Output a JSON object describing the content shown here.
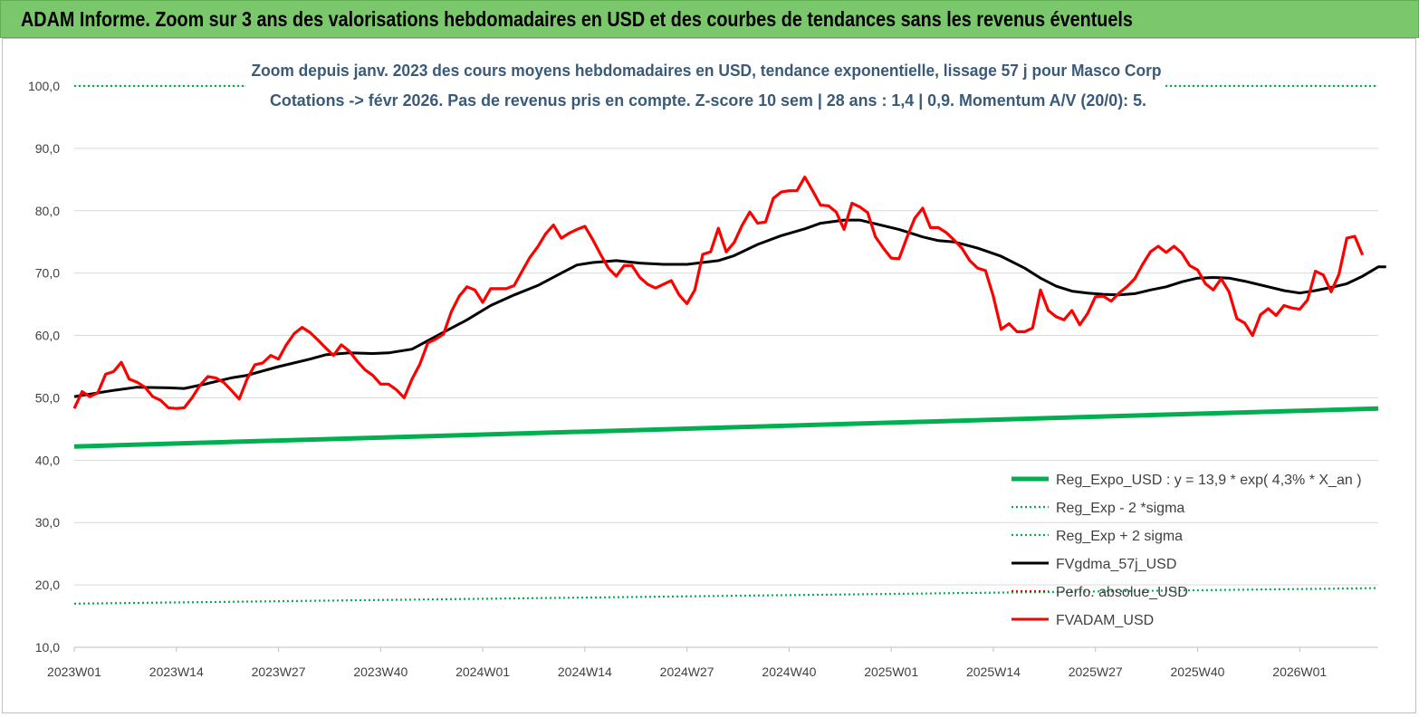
{
  "banner": {
    "title": "ADAM Informe. Zoom sur 3 ans des valorisations hebdomadaires en USD et des courbes de tendances sans les revenus éventuels"
  },
  "chart_data": {
    "type": "line",
    "title": "Zoom depuis janv. 2023 des cours moyens hebdomadaires en USD, tendance exponentielle, lissage 57 j pour Masco Corp",
    "subtitle": "Cotations -> févr 2026. Pas de revenus pris en compte. Z-score 10 sem | 28 ans : 1,4 | 0,9. Momentum A/V (20/0): 5.",
    "xlabel": "",
    "ylabel": "",
    "ylim": [
      10,
      100
    ],
    "yticks": [
      "10,0",
      "20,0",
      "30,0",
      "40,0",
      "50,0",
      "60,0",
      "70,0",
      "80,0",
      "90,0",
      "100,0"
    ],
    "xticks": [
      "2023W01",
      "2023W14",
      "2023W27",
      "2023W40",
      "2024W01",
      "2024W14",
      "2024W27",
      "2024W40",
      "2025W01",
      "2025W14",
      "2025W27",
      "2025W40",
      "2026W01"
    ],
    "n_weeks": 167,
    "grid": true,
    "legend_position": "right",
    "series": [
      {
        "name": "Reg_Expo_USD : y = 13,9 * exp( 4,3% *  X_an )",
        "color": "#00b050",
        "style": "solid",
        "points": [
          [
            0,
            42.2
          ],
          [
            166,
            48.3
          ]
        ]
      },
      {
        "name": "Reg_Exp - 2 *sigma",
        "color": "#00b050",
        "style": "dotted",
        "points": [
          [
            0,
            17.0
          ],
          [
            166,
            19.5
          ]
        ]
      },
      {
        "name": "Reg_Exp + 2 sigma",
        "color": "#00b050",
        "style": "dotted",
        "points": [
          [
            0,
            100.0
          ],
          [
            166,
            100.0
          ]
        ]
      },
      {
        "name": "FVgdma_57j_USD",
        "color": "#000000",
        "style": "solid",
        "points": [
          [
            0,
            50.2
          ],
          [
            5,
            51.2
          ],
          [
            8,
            51.7
          ],
          [
            12,
            51.6
          ],
          [
            14,
            51.5
          ],
          [
            17,
            52.3
          ],
          [
            20,
            53.2
          ],
          [
            22,
            53.6
          ],
          [
            26,
            55.0
          ],
          [
            30,
            56.2
          ],
          [
            32,
            56.9
          ],
          [
            35,
            57.2
          ],
          [
            38,
            57.1
          ],
          [
            40,
            57.2
          ],
          [
            43,
            57.8
          ],
          [
            47,
            60.5
          ],
          [
            50,
            62.5
          ],
          [
            53,
            64.8
          ],
          [
            56,
            66.5
          ],
          [
            59,
            68.0
          ],
          [
            62,
            70.0
          ],
          [
            64,
            71.3
          ],
          [
            66,
            71.7
          ],
          [
            69,
            72.0
          ],
          [
            72,
            71.6
          ],
          [
            75,
            71.4
          ],
          [
            78,
            71.4
          ],
          [
            82,
            72.0
          ],
          [
            84,
            72.8
          ],
          [
            87,
            74.6
          ],
          [
            90,
            76.0
          ],
          [
            93,
            77.1
          ],
          [
            95,
            78.0
          ],
          [
            98,
            78.5
          ],
          [
            100,
            78.5
          ],
          [
            103,
            77.6
          ],
          [
            105,
            77.0
          ],
          [
            108,
            75.8
          ],
          [
            110,
            75.2
          ],
          [
            112,
            75.0
          ],
          [
            115,
            74.0
          ],
          [
            118,
            72.7
          ],
          [
            121,
            70.8
          ],
          [
            123,
            69.2
          ],
          [
            125,
            67.9
          ],
          [
            127,
            67.1
          ],
          [
            129,
            66.8
          ],
          [
            131,
            66.6
          ],
          [
            133,
            66.5
          ],
          [
            135,
            66.7
          ],
          [
            137,
            67.3
          ],
          [
            139,
            67.8
          ],
          [
            141,
            68.6
          ],
          [
            143,
            69.2
          ],
          [
            145,
            69.3
          ],
          [
            147,
            69.2
          ],
          [
            149,
            68.7
          ],
          [
            152,
            67.8
          ],
          [
            154,
            67.2
          ],
          [
            156,
            66.8
          ],
          [
            158,
            67.2
          ],
          [
            160,
            67.7
          ],
          [
            162,
            68.3
          ],
          [
            164,
            69.5
          ],
          [
            166,
            71.0
          ],
          [
            167,
            71.0
          ]
        ]
      },
      {
        "name": "Perfo. absolue_USD",
        "color": "#ff0000",
        "style": "dotted",
        "points": []
      },
      {
        "name": "FVADAM_USD",
        "color": "#ff0000",
        "style": "solid",
        "points": [
          [
            0,
            48.3
          ],
          [
            1,
            51.0
          ],
          [
            2,
            50.2
          ],
          [
            3,
            50.8
          ],
          [
            4,
            53.8
          ],
          [
            5,
            54.2
          ],
          [
            6,
            55.7
          ],
          [
            7,
            53.0
          ],
          [
            8,
            52.5
          ],
          [
            9,
            51.7
          ],
          [
            10,
            50.2
          ],
          [
            11,
            49.6
          ],
          [
            12,
            48.4
          ],
          [
            13,
            48.3
          ],
          [
            14,
            48.4
          ],
          [
            15,
            50.0
          ],
          [
            16,
            52.0
          ],
          [
            17,
            53.4
          ],
          [
            18,
            53.2
          ],
          [
            19,
            52.5
          ],
          [
            20,
            51.2
          ],
          [
            21,
            49.8
          ],
          [
            22,
            53.0
          ],
          [
            23,
            55.3
          ],
          [
            24,
            55.6
          ],
          [
            25,
            56.8
          ],
          [
            26,
            56.2
          ],
          [
            27,
            58.5
          ],
          [
            28,
            60.3
          ],
          [
            29,
            61.3
          ],
          [
            30,
            60.5
          ],
          [
            31,
            59.3
          ],
          [
            32,
            58.0
          ],
          [
            33,
            56.8
          ],
          [
            34,
            58.5
          ],
          [
            35,
            57.5
          ],
          [
            36,
            55.9
          ],
          [
            37,
            54.5
          ],
          [
            38,
            53.6
          ],
          [
            39,
            52.2
          ],
          [
            40,
            52.2
          ],
          [
            41,
            51.3
          ],
          [
            42,
            50.0
          ],
          [
            43,
            53.0
          ],
          [
            44,
            55.4
          ],
          [
            45,
            58.8
          ],
          [
            46,
            59.4
          ],
          [
            47,
            60.2
          ],
          [
            48,
            63.8
          ],
          [
            49,
            66.3
          ],
          [
            50,
            67.8
          ],
          [
            51,
            67.3
          ],
          [
            52,
            65.3
          ],
          [
            53,
            67.5
          ],
          [
            54,
            67.5
          ],
          [
            55,
            67.5
          ],
          [
            56,
            68.0
          ],
          [
            57,
            70.3
          ],
          [
            58,
            72.5
          ],
          [
            59,
            74.2
          ],
          [
            60,
            76.3
          ],
          [
            61,
            77.7
          ],
          [
            62,
            75.6
          ],
          [
            63,
            76.4
          ],
          [
            64,
            77.0
          ],
          [
            65,
            77.5
          ],
          [
            66,
            75.4
          ],
          [
            67,
            73.0
          ],
          [
            68,
            70.8
          ],
          [
            69,
            69.5
          ],
          [
            70,
            71.2
          ],
          [
            71,
            71.2
          ],
          [
            72,
            69.3
          ],
          [
            73,
            68.2
          ],
          [
            74,
            67.6
          ],
          [
            75,
            68.2
          ],
          [
            76,
            68.8
          ],
          [
            77,
            66.5
          ],
          [
            78,
            65.1
          ],
          [
            79,
            67.3
          ],
          [
            80,
            73.0
          ],
          [
            81,
            73.4
          ],
          [
            82,
            77.2
          ],
          [
            83,
            73.4
          ],
          [
            84,
            74.9
          ],
          [
            85,
            77.6
          ],
          [
            86,
            79.8
          ],
          [
            87,
            78.0
          ],
          [
            88,
            78.2
          ],
          [
            89,
            82.0
          ],
          [
            90,
            83.0
          ],
          [
            91,
            83.2
          ],
          [
            92,
            83.2
          ],
          [
            93,
            85.4
          ],
          [
            94,
            83.2
          ],
          [
            95,
            80.9
          ],
          [
            96,
            80.8
          ],
          [
            97,
            79.8
          ],
          [
            98,
            77.0
          ],
          [
            99,
            81.2
          ],
          [
            100,
            80.6
          ],
          [
            101,
            79.7
          ],
          [
            102,
            75.8
          ],
          [
            103,
            74.0
          ],
          [
            104,
            72.4
          ],
          [
            105,
            72.3
          ],
          [
            106,
            75.7
          ],
          [
            107,
            78.8
          ],
          [
            108,
            80.4
          ],
          [
            109,
            77.3
          ],
          [
            110,
            77.3
          ],
          [
            111,
            76.5
          ],
          [
            112,
            75.3
          ],
          [
            113,
            74.0
          ],
          [
            114,
            72.0
          ],
          [
            115,
            70.8
          ],
          [
            116,
            70.4
          ],
          [
            117,
            66.3
          ],
          [
            118,
            61.0
          ],
          [
            119,
            61.9
          ],
          [
            120,
            60.6
          ],
          [
            121,
            60.6
          ],
          [
            122,
            61.2
          ],
          [
            123,
            67.3
          ],
          [
            124,
            64.0
          ],
          [
            125,
            63.0
          ],
          [
            126,
            62.5
          ],
          [
            127,
            64.0
          ],
          [
            128,
            61.7
          ],
          [
            129,
            63.5
          ],
          [
            130,
            66.2
          ],
          [
            131,
            66.3
          ],
          [
            132,
            65.5
          ],
          [
            133,
            66.8
          ],
          [
            134,
            67.8
          ],
          [
            135,
            69.1
          ],
          [
            136,
            71.4
          ],
          [
            137,
            73.4
          ],
          [
            138,
            74.3
          ],
          [
            139,
            73.3
          ],
          [
            140,
            74.3
          ],
          [
            141,
            73.2
          ],
          [
            142,
            71.2
          ],
          [
            143,
            70.5
          ],
          [
            144,
            68.3
          ],
          [
            145,
            67.3
          ],
          [
            146,
            69.1
          ],
          [
            147,
            67.0
          ],
          [
            148,
            62.7
          ],
          [
            149,
            62.0
          ],
          [
            150,
            60.0
          ],
          [
            151,
            63.3
          ],
          [
            152,
            64.3
          ],
          [
            153,
            63.2
          ],
          [
            154,
            64.8
          ],
          [
            155,
            64.4
          ],
          [
            156,
            64.2
          ],
          [
            157,
            65.7
          ],
          [
            158,
            70.3
          ],
          [
            159,
            69.7
          ],
          [
            160,
            67.0
          ],
          [
            161,
            69.8
          ],
          [
            162,
            75.6
          ],
          [
            163,
            75.9
          ],
          [
            164,
            72.9
          ]
        ]
      }
    ]
  }
}
